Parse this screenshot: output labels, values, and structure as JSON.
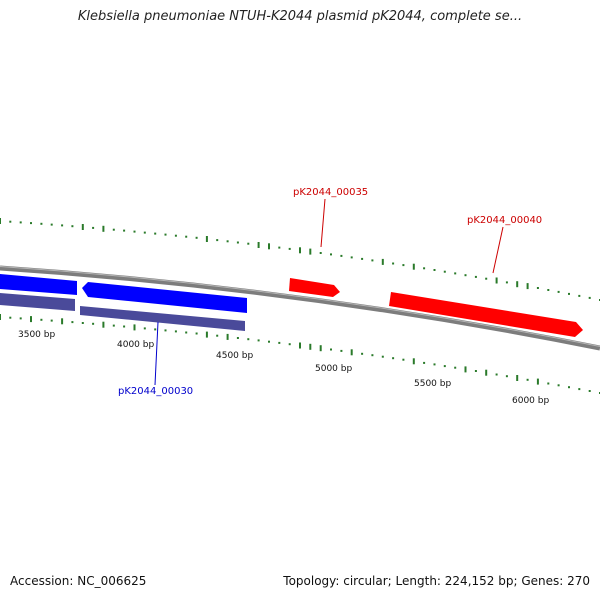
{
  "title": "Klebsiella pneumoniae NTUH-K2044 plasmid pK2044, complete se...",
  "footer": {
    "accession": "Accession: NC_006625",
    "summary": "Topology: circular; Length: 224,152 bp; Genes: 270"
  },
  "colors": {
    "forward_gene": "#ff0000",
    "reverse_gene": "#0000ff",
    "reverse_gene_shadow": "#4a4a9a",
    "backbone": "#808080",
    "gc_tick": "#2a7a2a"
  },
  "tick_labels": [
    "3500 bp",
    "4000 bp",
    "4500 bp",
    "5000 bp",
    "5500 bp",
    "6000 bp"
  ],
  "gene_labels": [
    {
      "name": "pK2044_00030",
      "strand": "reverse"
    },
    {
      "name": "pK2044_00035",
      "strand": "forward"
    },
    {
      "name": "pK2044_00040",
      "strand": "forward"
    }
  ]
}
